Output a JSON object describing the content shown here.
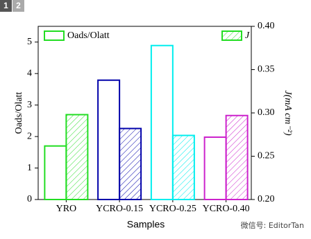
{
  "tabs": [
    "1",
    "2"
  ],
  "watermark": "微信号: EditorTan",
  "chart_data": {
    "type": "bar",
    "x_label": "Samples",
    "y_label": "Oads/Olatt",
    "y2_label": "J(mA cm⁻²)",
    "categories": [
      "YRO",
      "YCRO-0.15",
      "YCRO-0.25",
      "YCRO-0.40"
    ],
    "category_colors": [
      "#22dd22",
      "#0000aa",
      "#00eeee",
      "#cc22cc"
    ],
    "series": [
      {
        "name": "Oads/Olatt",
        "color": "#22dd22",
        "hatch": false,
        "values": [
          1.7,
          3.79,
          4.89,
          1.98
        ]
      },
      {
        "name": "J",
        "color": "#22dd22",
        "hatch": true,
        "axis": "y2",
        "values": [
          0.298,
          0.282,
          0.274,
          0.297
        ]
      }
    ],
    "ylim": [
      0,
      5.5
    ],
    "yticks": [
      0,
      1,
      2,
      3,
      4,
      5
    ],
    "y2lim": [
      0.2,
      0.4
    ],
    "y2ticks": [
      {
        "value": 0.2,
        "label": "0.20"
      },
      0.25,
      {
        "value": 0.3,
        "label": "0.30"
      },
      0.35,
      {
        "value": 0.4,
        "label": "0.40"
      }
    ]
  }
}
